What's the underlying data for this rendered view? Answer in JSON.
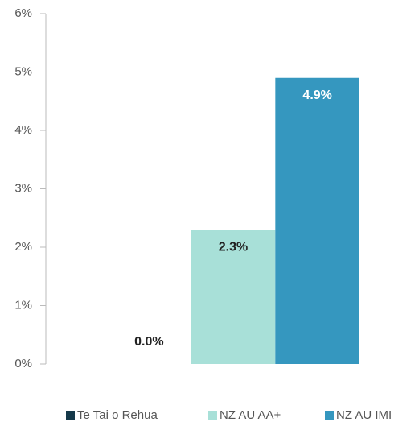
{
  "chart_data": {
    "type": "bar",
    "categories": [
      null
    ],
    "series": [
      {
        "name": "Te Tai o Rehua",
        "color": "#15394a",
        "values": [
          0.0
        ],
        "value_labels": [
          "0.0%"
        ]
      },
      {
        "name": "NZ AU AA+",
        "color": "#a8e0d8",
        "values": [
          2.3
        ],
        "value_labels": [
          "2.3%"
        ]
      },
      {
        "name": "NZ AU IMI",
        "color": "#3597bf",
        "values": [
          4.9
        ],
        "value_labels": [
          "4.9%"
        ]
      }
    ],
    "ylim": [
      0,
      6
    ],
    "yticks": [
      {
        "value": 0,
        "label": "0%"
      },
      {
        "value": 1,
        "label": "1%"
      },
      {
        "value": 2,
        "label": "2%"
      },
      {
        "value": 3,
        "label": "3%"
      },
      {
        "value": 4,
        "label": "4%"
      },
      {
        "value": 5,
        "label": "5%"
      },
      {
        "value": 6,
        "label": "6%"
      }
    ],
    "grid": false,
    "legend": "bottom"
  }
}
